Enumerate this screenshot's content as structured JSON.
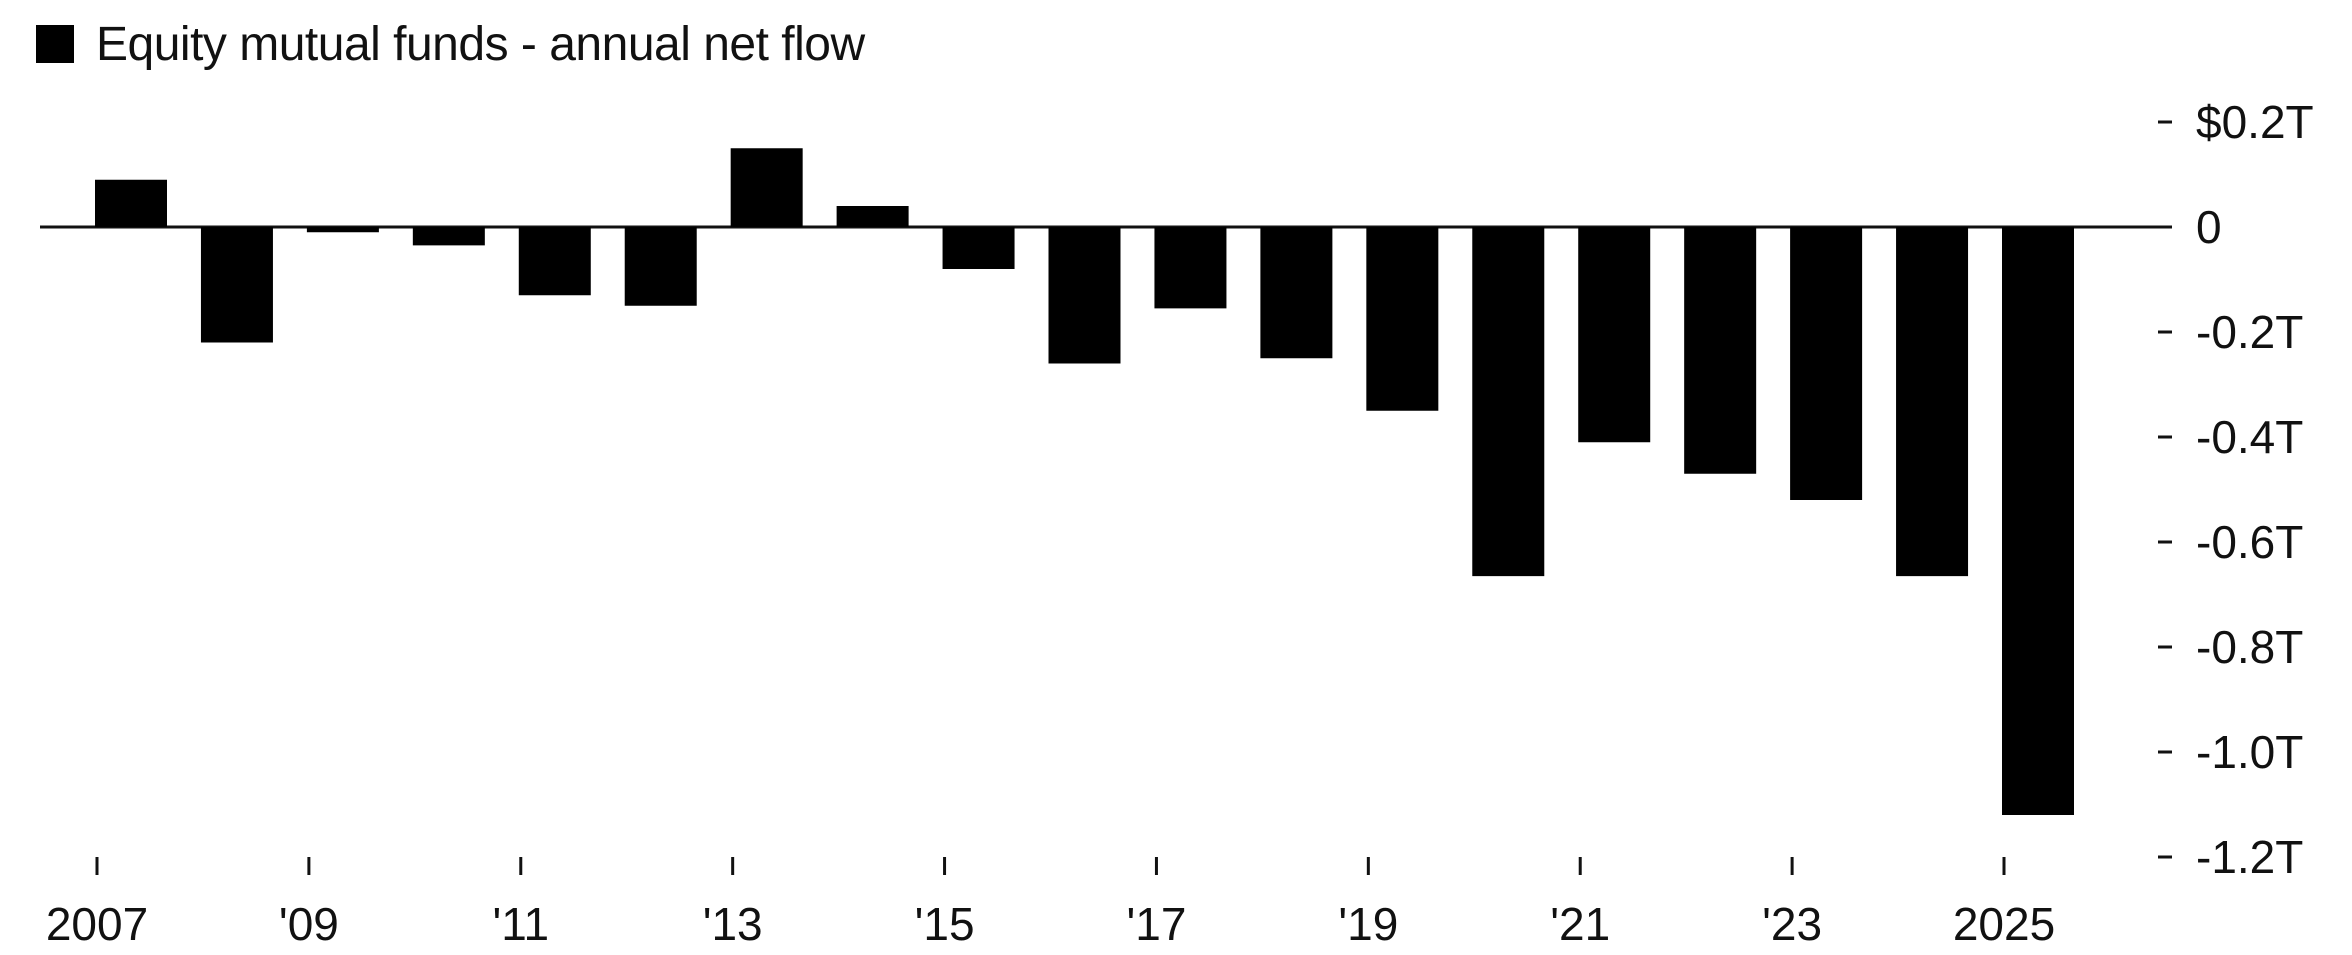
{
  "legend": {
    "label": "Equity mutual funds - annual net flow",
    "color": "#000000"
  },
  "chart_data": {
    "type": "bar",
    "title": "",
    "xlabel": "",
    "ylabel": "",
    "categories": [
      "2007",
      "2008",
      "2009",
      "2010",
      "2011",
      "2012",
      "2013",
      "2014",
      "2015",
      "2016",
      "2017",
      "2018",
      "2019",
      "2020",
      "2021",
      "2022",
      "2023",
      "2024",
      "2025"
    ],
    "series": [
      {
        "name": "Equity mutual funds - annual net flow",
        "color": "#000000",
        "values": [
          0.09,
          -0.22,
          -0.01,
          -0.035,
          -0.13,
          -0.15,
          0.15,
          0.04,
          -0.08,
          -0.26,
          -0.155,
          -0.25,
          -0.35,
          -0.665,
          -0.41,
          -0.47,
          -0.52,
          -0.665,
          -1.12
        ]
      }
    ],
    "ylim": [
      -1.2,
      0.2
    ],
    "y_ticks": [
      {
        "value": 0.2,
        "label": "$0.2T"
      },
      {
        "value": 0,
        "label": "0"
      },
      {
        "value": -0.2,
        "label": "-0.2T"
      },
      {
        "value": -0.4,
        "label": "-0.4T"
      },
      {
        "value": -0.6,
        "label": "-0.6T"
      },
      {
        "value": -0.8,
        "label": "-0.8T"
      },
      {
        "value": -1.0,
        "label": "-1.0T"
      },
      {
        "value": -1.2,
        "label": "-1.2T"
      }
    ],
    "x_ticks": [
      {
        "category": "2007",
        "label": "2007"
      },
      {
        "category": "2009",
        "label": "'09"
      },
      {
        "category": "2011",
        "label": "'11"
      },
      {
        "category": "2013",
        "label": "'13"
      },
      {
        "category": "2015",
        "label": "'15"
      },
      {
        "category": "2017",
        "label": "'17"
      },
      {
        "category": "2019",
        "label": "'19"
      },
      {
        "category": "2021",
        "label": "'21"
      },
      {
        "category": "2023",
        "label": "'23"
      },
      {
        "category": "2025",
        "label": "2025"
      }
    ],
    "y_axis_position": "right",
    "grid": false,
    "legend_position": "top-left"
  }
}
